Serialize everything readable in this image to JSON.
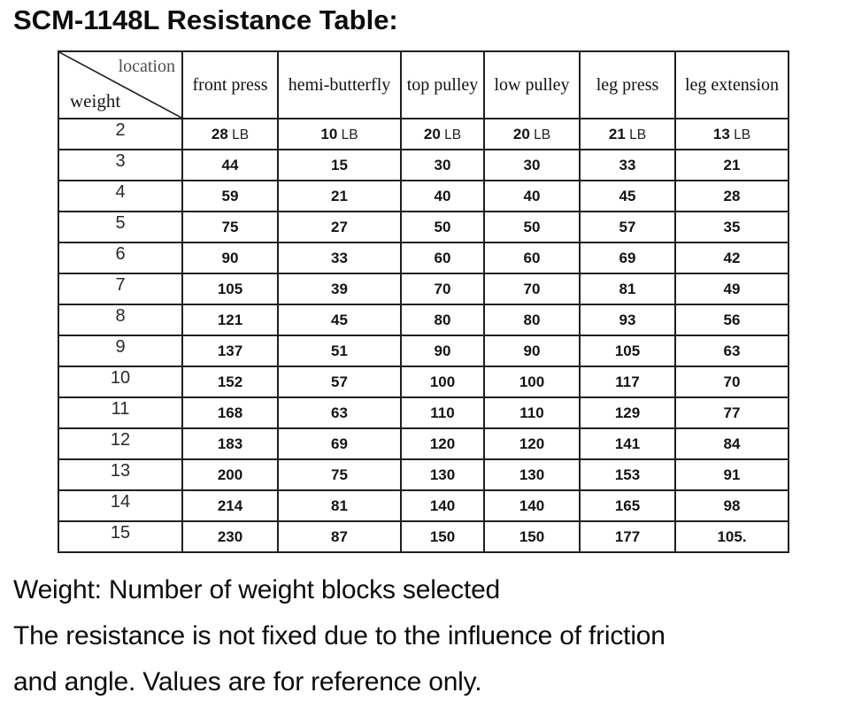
{
  "title": "SCM-1148L Resistance Table:",
  "table": {
    "corner": {
      "top_label": "location",
      "bottom_label": "weight"
    },
    "columns": [
      "front press",
      "hemi-butterfly",
      "top pulley",
      "low pulley",
      "leg press",
      "leg extension"
    ],
    "unit": "LB",
    "rows": [
      {
        "weight": "2",
        "show_unit": true,
        "values": [
          "28",
          "10",
          "20",
          "20",
          "21",
          "13"
        ]
      },
      {
        "weight": "3",
        "show_unit": false,
        "values": [
          "44",
          "15",
          "30",
          "30",
          "33",
          "21"
        ]
      },
      {
        "weight": "4",
        "show_unit": false,
        "values": [
          "59",
          "21",
          "40",
          "40",
          "45",
          "28"
        ]
      },
      {
        "weight": "5",
        "show_unit": false,
        "values": [
          "75",
          "27",
          "50",
          "50",
          "57",
          "35"
        ]
      },
      {
        "weight": "6",
        "show_unit": false,
        "values": [
          "90",
          "33",
          "60",
          "60",
          "69",
          "42"
        ]
      },
      {
        "weight": "7",
        "show_unit": false,
        "values": [
          "105",
          "39",
          "70",
          "70",
          "81",
          "49"
        ]
      },
      {
        "weight": "8",
        "show_unit": false,
        "values": [
          "121",
          "45",
          "80",
          "80",
          "93",
          "56"
        ]
      },
      {
        "weight": "9",
        "show_unit": false,
        "values": [
          "137",
          "51",
          "90",
          "90",
          "105",
          "63"
        ]
      },
      {
        "weight": "10",
        "show_unit": false,
        "values": [
          "152",
          "57",
          "100",
          "100",
          "117",
          "70"
        ]
      },
      {
        "weight": "11",
        "show_unit": false,
        "values": [
          "168",
          "63",
          "110",
          "110",
          "129",
          "77"
        ]
      },
      {
        "weight": "12",
        "show_unit": false,
        "values": [
          "183",
          "69",
          "120",
          "120",
          "141",
          "84"
        ]
      },
      {
        "weight": "13",
        "show_unit": false,
        "values": [
          "200",
          "75",
          "130",
          "130",
          "153",
          "91"
        ]
      },
      {
        "weight": "14",
        "show_unit": false,
        "values": [
          "214",
          "81",
          "140",
          "140",
          "165",
          "98"
        ]
      },
      {
        "weight": "15",
        "show_unit": false,
        "values": [
          "230",
          "87",
          "150",
          "150",
          "177",
          "105."
        ]
      }
    ]
  },
  "notes": [
    "Weight: Number of weight blocks selected",
    "The resistance is not fixed due to the influence of friction",
    "and angle. Values are for reference only."
  ]
}
